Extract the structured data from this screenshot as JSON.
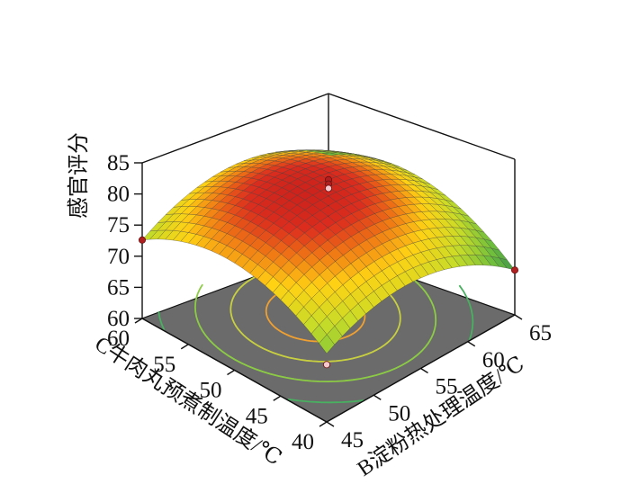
{
  "chart_data": {
    "type": "surface",
    "title": "",
    "zlabel": "感官评分",
    "x_axis": {
      "label": "B淀粉热处理温度/℃",
      "ticks": [
        45,
        50,
        55,
        60,
        65
      ],
      "range": [
        45,
        65
      ]
    },
    "y_axis": {
      "label": "C牛肉丸预煮制温度/℃",
      "ticks": [
        40,
        45,
        50,
        55,
        60
      ],
      "range": [
        40,
        60
      ]
    },
    "z_axis": {
      "ticks": [
        60,
        65,
        70,
        75,
        80,
        85
      ],
      "range": [
        60,
        85
      ]
    },
    "surface": {
      "max_value": 80.8,
      "max_at": [
        55,
        50
      ],
      "corner_values": {
        "x45_y40": 71.0,
        "x65_y40": 67.2,
        "x45_y60": 72.6,
        "x65_y60": 69.0
      }
    },
    "design_points": [
      {
        "x": 55,
        "y": 50,
        "z": 82.0
      },
      {
        "x": 55,
        "y": 50,
        "z": 81.3
      },
      {
        "x": 55,
        "y": 50,
        "z": 80.6
      },
      {
        "x": 45,
        "y": 60,
        "z": 72.6
      },
      {
        "x": 65,
        "y": 40,
        "z": 67.2
      },
      {
        "x": 45,
        "y": 40,
        "z": 69.2
      }
    ],
    "contours_on_floor": true,
    "colormap": "green-yellow-red"
  }
}
